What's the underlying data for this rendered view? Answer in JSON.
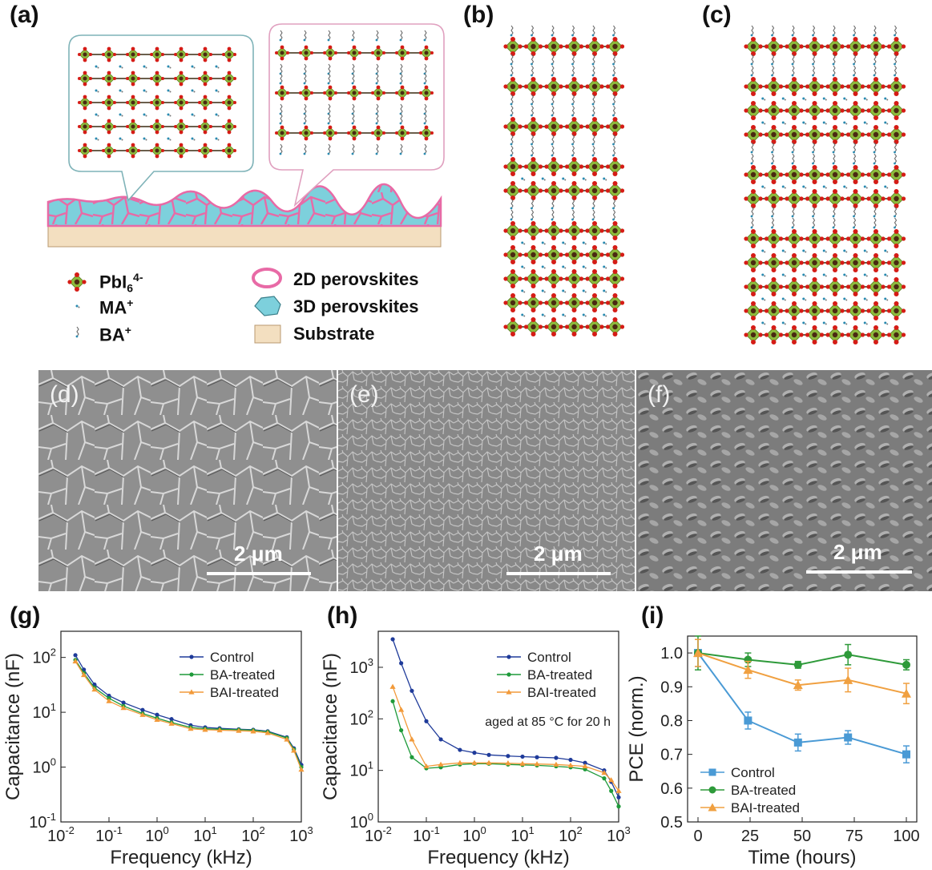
{
  "panels": {
    "a": "(a)",
    "b": "(b)",
    "c": "(c)",
    "d": "(d)",
    "e": "(e)",
    "f": "(f)",
    "g": "(g)",
    "h": "(h)",
    "i": "(i)"
  },
  "legend_a": {
    "pbi": "PbI",
    "pbi_sub": "6",
    "pbi_sup": "4-",
    "ma": "MA",
    "ma_sup": "+",
    "ba": "BA",
    "ba_sup": "+",
    "twod": "2D perovskites",
    "threed": "3D perovskites",
    "substrate": "Substrate"
  },
  "colors": {
    "pb_green": "#8dbb3c",
    "iodide_red": "#d51c16",
    "grain_cyan": "#7dd0dc",
    "boundary_pink": "#e86aa6",
    "substrate_tan": "#f3dfc0",
    "control": "#1f3b9a",
    "ba_treated": "#1e9a3a",
    "bai_treated": "#f29a3a",
    "i_control": "#4a9ad5",
    "i_ba": "#2e9a3a",
    "i_bai": "#f0a040"
  },
  "sem": {
    "scalebar": "2 μm"
  },
  "chart_data": [
    {
      "id": "g",
      "type": "line",
      "xscale": "log",
      "yscale": "log",
      "xlabel": "Frequency (kHz)",
      "ylabel": "Capacitance (nF)",
      "xlim": [
        0.01,
        1000
      ],
      "ylim": [
        0.1,
        300
      ],
      "xticks": [
        "10-2",
        "10-1",
        "100",
        "101",
        "102",
        "103"
      ],
      "yticks": [
        "10-1",
        "100",
        "101",
        "102"
      ],
      "series": [
        {
          "name": "Control",
          "x": [
            0.02,
            0.03,
            0.05,
            0.1,
            0.2,
            0.5,
            1,
            2,
            5,
            10,
            20,
            50,
            100,
            200,
            500,
            700,
            1000
          ],
          "y": [
            110,
            60,
            32,
            20,
            15,
            11,
            9,
            7.5,
            5.8,
            5.3,
            5.1,
            4.9,
            4.8,
            4.5,
            3.5,
            2.2,
            1.1
          ]
        },
        {
          "name": "BA-treated",
          "x": [
            0.02,
            0.03,
            0.05,
            0.1,
            0.2,
            0.5,
            1,
            2,
            5,
            10,
            20,
            50,
            100,
            200,
            500,
            700,
            1000
          ],
          "y": [
            90,
            52,
            28,
            18,
            13,
            9.5,
            7.8,
            6.5,
            5.3,
            5.0,
            4.9,
            4.8,
            4.7,
            4.4,
            3.4,
            2.1,
            1.0
          ]
        },
        {
          "name": "BAI-treated",
          "x": [
            0.02,
            0.03,
            0.05,
            0.1,
            0.2,
            0.5,
            1,
            2,
            5,
            10,
            20,
            50,
            100,
            200,
            500,
            700,
            1000
          ],
          "y": [
            85,
            48,
            26,
            16,
            12,
            9,
            7.3,
            6.2,
            5.0,
            4.8,
            4.7,
            4.6,
            4.5,
            4.2,
            3.2,
            2.0,
            0.9
          ]
        }
      ]
    },
    {
      "id": "h",
      "type": "line",
      "xscale": "log",
      "yscale": "log",
      "xlabel": "Frequency (kHz)",
      "ylabel": "Capacitance (nF)",
      "xlim": [
        0.01,
        1000
      ],
      "ylim": [
        1,
        5000
      ],
      "xticks": [
        "10-2",
        "10-1",
        "100",
        "101",
        "102",
        "103"
      ],
      "yticks": [
        "100",
        "101",
        "102",
        "103"
      ],
      "annotation": "aged at 85 °C for 20 h",
      "series": [
        {
          "name": "Control",
          "x": [
            0.02,
            0.03,
            0.05,
            0.1,
            0.2,
            0.5,
            1,
            2,
            5,
            10,
            20,
            50,
            100,
            200,
            500,
            700,
            1000
          ],
          "y": [
            3500,
            1200,
            350,
            90,
            40,
            25,
            22,
            20,
            19,
            18.5,
            18,
            17.5,
            16,
            14,
            10,
            6,
            3
          ]
        },
        {
          "name": "BA-treated",
          "x": [
            0.02,
            0.03,
            0.05,
            0.1,
            0.2,
            0.5,
            1,
            2,
            5,
            10,
            20,
            50,
            100,
            200,
            500,
            700,
            1000
          ],
          "y": [
            220,
            60,
            18,
            11,
            11.5,
            13,
            13.5,
            13.5,
            13,
            12.8,
            12.5,
            12,
            11.5,
            10.5,
            7,
            4,
            2
          ]
        },
        {
          "name": "BAI-treated",
          "x": [
            0.02,
            0.03,
            0.05,
            0.1,
            0.2,
            0.5,
            1,
            2,
            5,
            10,
            20,
            50,
            100,
            200,
            500,
            700,
            1000
          ],
          "y": [
            420,
            150,
            40,
            12,
            13,
            14,
            14,
            14,
            13.8,
            13.5,
            13.3,
            13,
            12.5,
            12,
            9,
            6.5,
            4
          ]
        }
      ]
    },
    {
      "id": "i",
      "type": "line",
      "xlabel": "Time (hours)",
      "ylabel": "PCE (norm.)",
      "xlim": [
        -5,
        105
      ],
      "ylim": [
        0.5,
        1.05
      ],
      "xticks": [
        0,
        25,
        50,
        75,
        100
      ],
      "yticks": [
        0.5,
        0.6,
        0.7,
        0.8,
        0.9,
        1.0
      ],
      "series": [
        {
          "name": "Control",
          "x": [
            0,
            24,
            48,
            72,
            100
          ],
          "y": [
            1.0,
            0.8,
            0.735,
            0.75,
            0.7
          ],
          "err": [
            0.04,
            0.025,
            0.025,
            0.02,
            0.025
          ]
        },
        {
          "name": "BA-treated",
          "x": [
            0,
            24,
            48,
            72,
            100
          ],
          "y": [
            1.0,
            0.98,
            0.965,
            0.995,
            0.965
          ],
          "err": [
            0.05,
            0.02,
            0.01,
            0.03,
            0.015
          ]
        },
        {
          "name": "BAI-treated",
          "x": [
            0,
            24,
            48,
            72,
            100
          ],
          "y": [
            1.0,
            0.95,
            0.905,
            0.92,
            0.88
          ],
          "err": [
            0.04,
            0.025,
            0.015,
            0.035,
            0.03
          ]
        }
      ]
    }
  ]
}
